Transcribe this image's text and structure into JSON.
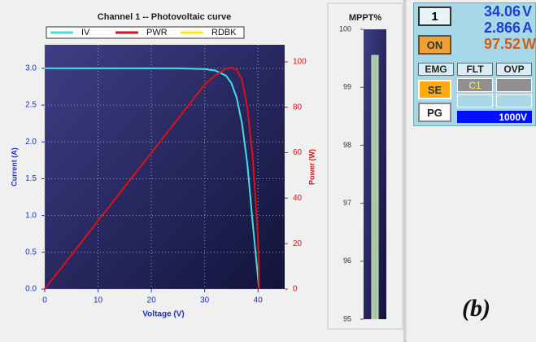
{
  "chart_data": [
    {
      "type": "line",
      "title": "Channel 1 -- Photovoltaic curve",
      "x_label": "Voltage (V)",
      "y_label": "Current (A)",
      "y2_label": "Power (W)",
      "x": [
        0,
        5,
        10,
        15,
        20,
        25,
        30,
        32,
        34,
        35,
        36,
        37,
        38,
        39,
        40,
        40.2
      ],
      "series": [
        {
          "name": "IV",
          "color": "#40e0e0",
          "values": [
            3.0,
            3.0,
            3.0,
            3.0,
            3.0,
            3.0,
            2.99,
            2.97,
            2.9,
            2.8,
            2.6,
            2.25,
            1.7,
            0.9,
            0.15,
            0
          ]
        },
        {
          "name": "PWR",
          "color": "#dd1111",
          "axis": "y2",
          "values": [
            0,
            15,
            30,
            45,
            60,
            75,
            90,
            94,
            97,
            97.5,
            96.5,
            92,
            80,
            58,
            22,
            0
          ]
        },
        {
          "name": "RDBK",
          "color": "#ffee00",
          "values": [
            null,
            null,
            null,
            null,
            null,
            null,
            null,
            null,
            null,
            null,
            null,
            null,
            null,
            null,
            null,
            null
          ]
        }
      ],
      "xlim": [
        0,
        45
      ],
      "xticks": [
        0,
        10,
        20,
        30,
        40
      ],
      "ylim": [
        0,
        3.32
      ],
      "yticks": [
        {
          "value": 0,
          "label": "0.0"
        },
        0.5,
        {
          "value": 1,
          "label": "1.0"
        },
        1.5,
        {
          "value": 2,
          "label": "2.0"
        },
        2.5,
        {
          "value": 3,
          "label": "3.0"
        }
      ],
      "y2lim": [
        0,
        107.5
      ],
      "y2ticks": [
        0,
        20,
        40,
        60,
        80,
        100
      ],
      "grid": true,
      "legend": "top"
    },
    {
      "type": "bar",
      "title": "MPPT%",
      "categories": [
        null
      ],
      "values": [
        99.55
      ],
      "color": "#a8c8a0",
      "ylim": [
        95,
        100
      ],
      "yticks": [
        95,
        96,
        97,
        98,
        99,
        100
      ]
    }
  ],
  "panel": {
    "channel": "1",
    "readouts": [
      {
        "value": "34.06",
        "unit": "V"
      },
      {
        "value": "2.866",
        "unit": "A"
      },
      {
        "value": "97.52",
        "unit": "W"
      }
    ],
    "on": "ON",
    "headers": [
      "EMG",
      "FLT",
      "OVP"
    ],
    "se": "SE",
    "flt_code": "C1",
    "pg": "PG",
    "range": "1000V"
  },
  "caption": "(b)"
}
